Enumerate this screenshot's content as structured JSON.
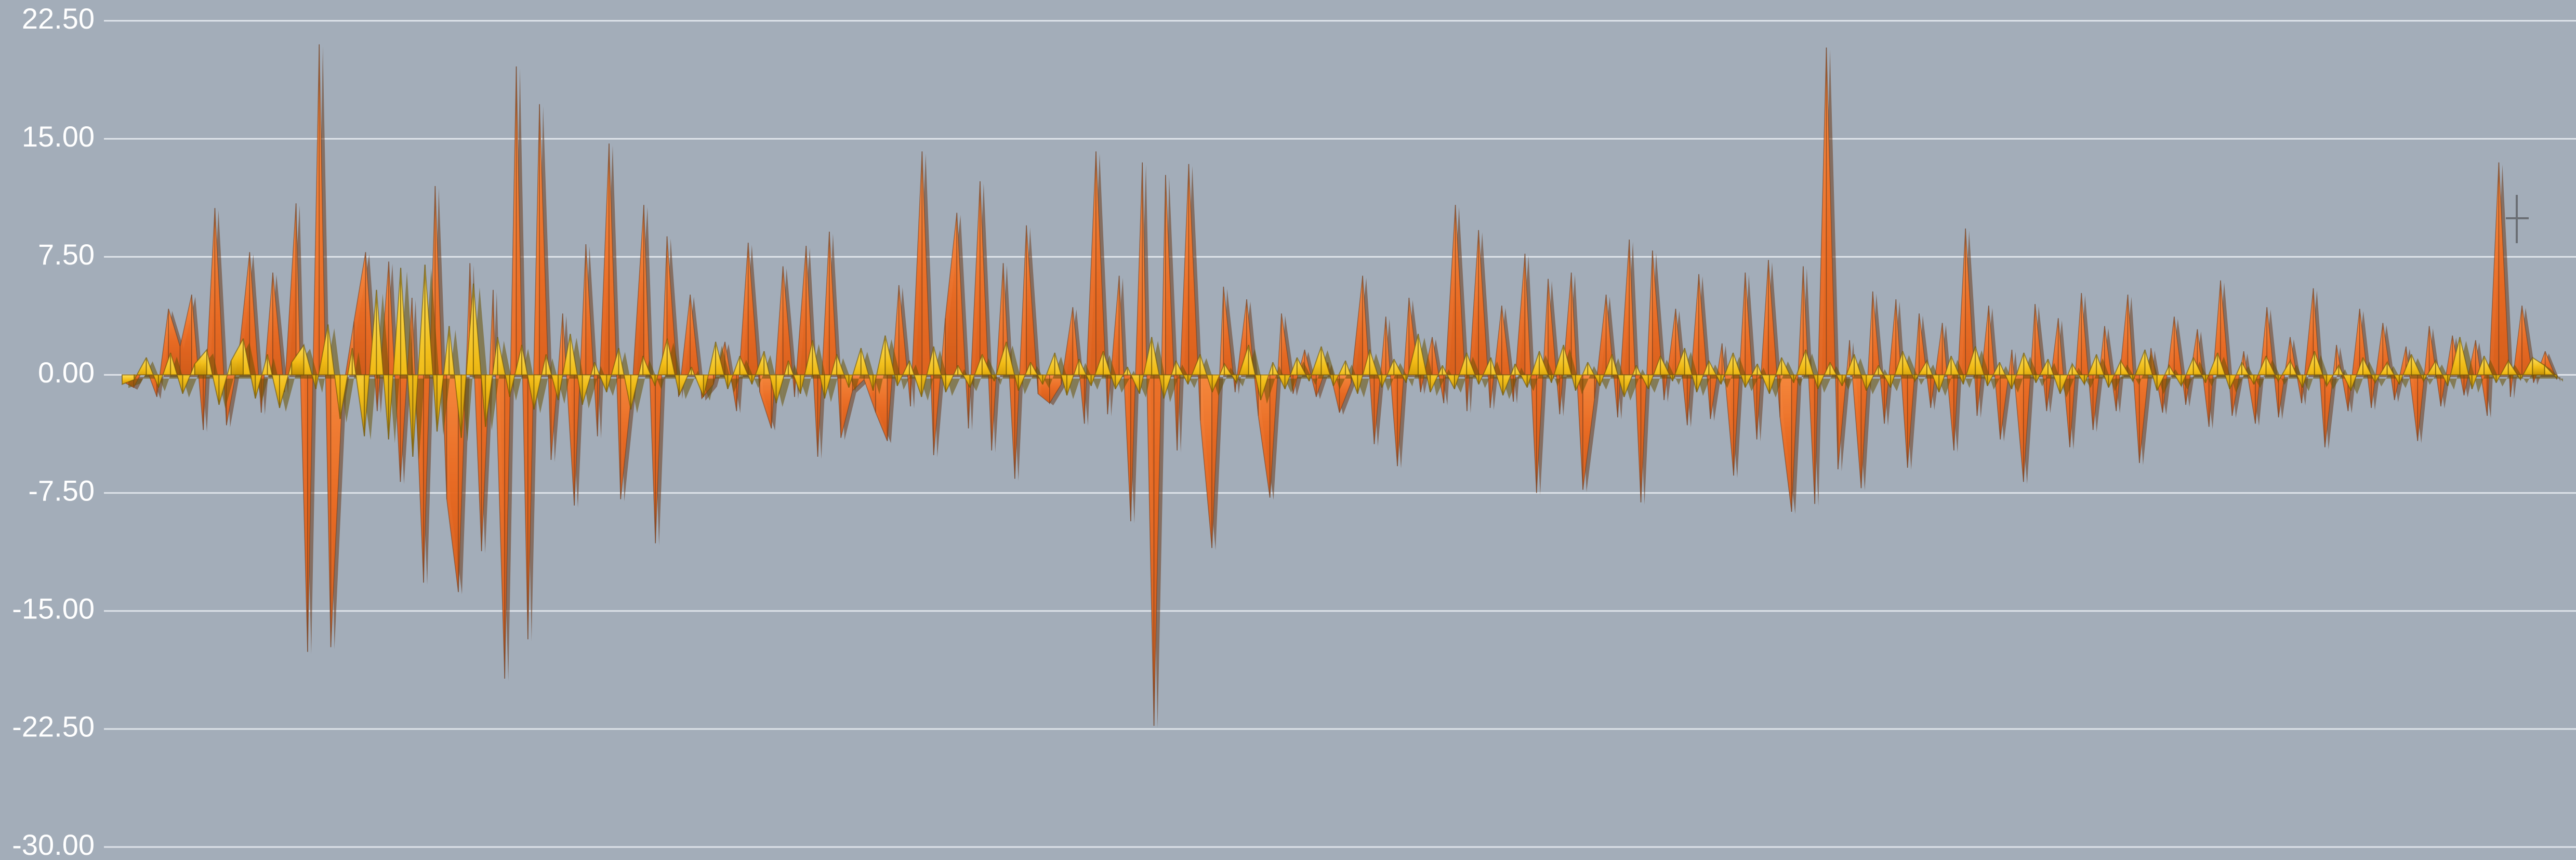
{
  "chart_data": {
    "type": "area",
    "title": "",
    "xlabel": "",
    "ylabel": "",
    "ylim": [
      -30,
      22.5
    ],
    "yticks": [
      22.5,
      15,
      7.5,
      0,
      -7.5,
      -15,
      -22.5,
      -30
    ],
    "ytick_labels": [
      "22.50",
      "15.00",
      "7.50",
      "0.00",
      "-7.50",
      "-15.00",
      "-22.50",
      "-30.00"
    ],
    "grid": true,
    "legend": "none",
    "series": [
      {
        "color": "#f07a2c",
        "values": [
          -0.4,
          -0.8,
          0.6,
          -1.4,
          4.2,
          1.8,
          5.1,
          -3.5,
          10.6,
          -3.2,
          0.9,
          7.8,
          -2.4,
          6.5,
          -1.1,
          10.9,
          -17.6,
          21.0,
          -17.3,
          -1.2,
          3.4,
          7.8,
          -2.3,
          7.2,
          -6.8,
          4.9,
          -13.2,
          12.0,
          -7.9,
          -13.8,
          7.1,
          -11.2,
          5.4,
          -19.3,
          19.6,
          -16.8,
          17.2,
          -5.4,
          3.9,
          -8.3,
          8.3,
          -3.9,
          14.7,
          -7.9,
          -0.8,
          10.8,
          -10.7,
          8.8,
          -1.4,
          5.1,
          -1.5,
          -0.6,
          2.1,
          -2.3,
          8.4,
          -1.1,
          -3.4,
          6.9,
          -1.4,
          8.2,
          -5.2,
          9.1,
          -4.0,
          -1.0,
          -0.3,
          -2.4,
          -4.2,
          5.7,
          -2.0,
          14.2,
          -5.1,
          3.6,
          10.3,
          -3.4,
          12.3,
          -4.8,
          7.1,
          -6.6,
          9.5,
          -1.2,
          -1.8,
          -0.6,
          4.3,
          -3.1,
          14.2,
          -2.5,
          6.3,
          -9.3,
          13.5,
          -22.3,
          12.7,
          -4.8,
          13.4,
          -2.9,
          -11.0,
          5.6,
          -1.1,
          4.8,
          -2.6,
          -7.8,
          3.9,
          -1.2,
          1.6,
          -1.4,
          0.8,
          -2.4,
          -0.5,
          6.3,
          -4.4,
          3.7,
          -5.8,
          4.9,
          -1.1,
          2.4,
          -1.8,
          10.8,
          -2.3,
          9.2,
          -2.1,
          4.4,
          -1.7,
          7.7,
          -7.5,
          6.1,
          -2.5,
          6.5,
          -7.3,
          -1.5,
          5.1,
          -2.7,
          8.6,
          -8.1,
          7.9,
          -1.6,
          4.2,
          -3.2,
          6.4,
          -2.8,
          2.0,
          -6.4,
          6.5,
          -4.1,
          7.3,
          -2.7,
          -8.7,
          6.9,
          -8.2,
          20.8,
          -6.0,
          2.2,
          -7.2,
          5.3,
          -3.1,
          4.8,
          -5.9,
          3.9,
          -2.1,
          3.3,
          -4.8,
          9.3,
          -2.6,
          4.4,
          -4.1,
          1.6,
          -6.8,
          4.5,
          -2.3,
          3.6,
          -4.6,
          5.2,
          -3.5,
          3.1,
          -2.3,
          5.1,
          -5.6,
          1.7,
          -2.4,
          3.7,
          -1.9,
          2.9,
          -3.3,
          6.0,
          -2.6,
          1.5,
          -3.1,
          4.3,
          -2.7,
          2.4,
          -1.8,
          5.5,
          -4.6,
          1.9,
          -2.3,
          4.2,
          -2.1,
          3.3,
          -1.6,
          1.8,
          -4.2,
          3.1,
          -2.0,
          2.5,
          -1.3,
          2.2,
          -2.6,
          13.5,
          -1.4,
          4.4,
          -0.5,
          1.5,
          -0.3
        ]
      },
      {
        "color": "#f2c120",
        "values": [
          -0.6,
          -0.3,
          1.1,
          -0.8,
          1.4,
          -1.2,
          0.7,
          1.6,
          -1.9,
          0.9,
          2.3,
          -1.5,
          1.3,
          -2.1,
          0.8,
          1.9,
          -0.9,
          3.2,
          -2.8,
          1.7,
          -3.9,
          5.4,
          -4.1,
          6.8,
          -5.2,
          7.0,
          -3.6,
          3.1,
          -4.0,
          5.8,
          -3.3,
          2.4,
          -1.4,
          1.9,
          -2.2,
          1.3,
          -1.6,
          2.6,
          -1.9,
          0.8,
          -1.1,
          1.7,
          -2.2,
          1.2,
          -0.7,
          2.3,
          -1.3,
          0.5,
          -1.4,
          2.1,
          -0.9,
          1.2,
          -0.6,
          1.5,
          -1.8,
          0.9,
          -1.2,
          2.2,
          -1.5,
          1.3,
          -0.8,
          1.7,
          -1.0,
          2.5,
          -0.7,
          0.9,
          -1.4,
          1.8,
          -1.1,
          0.6,
          -0.8,
          1.3,
          -0.4,
          2.1,
          -1.0,
          0.8,
          -0.6,
          1.4,
          -1.3,
          1.0,
          -0.7,
          1.5,
          -0.9,
          0.5,
          -1.2,
          2.4,
          -1.5,
          0.9,
          -0.6,
          1.3,
          -1.1,
          0.7,
          -0.5,
          1.9,
          -1.6,
          0.8,
          -0.9,
          1.1,
          -0.4,
          1.8,
          -0.7,
          0.9,
          -1.2,
          1.6,
          -0.8,
          1.0,
          -0.5,
          2.6,
          -1.1,
          0.6,
          -0.9,
          1.4,
          -0.6,
          1.1,
          -1.3,
          0.7,
          -0.8,
          1.5,
          -0.5,
          1.9,
          -1.0,
          0.8,
          -0.7,
          1.3,
          -1.4,
          0.6,
          -0.9,
          1.2,
          -0.4,
          1.7,
          -1.1,
          0.9,
          -0.6,
          1.4,
          -0.8,
          0.7,
          -1.2,
          1.1,
          -0.5,
          1.6,
          -0.9,
          0.8,
          -0.7,
          1.3,
          -1.0,
          0.6,
          -0.8,
          1.5,
          -0.4,
          0.9,
          -1.1,
          1.2,
          -0.6,
          1.8,
          -0.7,
          0.8,
          -0.9,
          1.4,
          -0.5,
          1.0,
          -1.2,
          0.7,
          -0.6,
          1.3,
          -0.8,
          0.9,
          -0.4,
          1.6,
          -1.0,
          0.6,
          -0.7,
          1.1,
          -0.5,
          1.4,
          -0.9,
          0.8,
          -0.6,
          1.2,
          -0.4,
          0.9,
          -0.8,
          1.5,
          -0.7,
          0.6,
          -1.0,
          1.1,
          -0.5,
          0.8,
          -0.6,
          1.3,
          -0.4,
          0.9,
          -0.7,
          2.4,
          -0.9,
          1.2,
          -0.5,
          0.9,
          -0.3,
          1.1,
          0.6,
          -0.2
        ]
      }
    ]
  }
}
